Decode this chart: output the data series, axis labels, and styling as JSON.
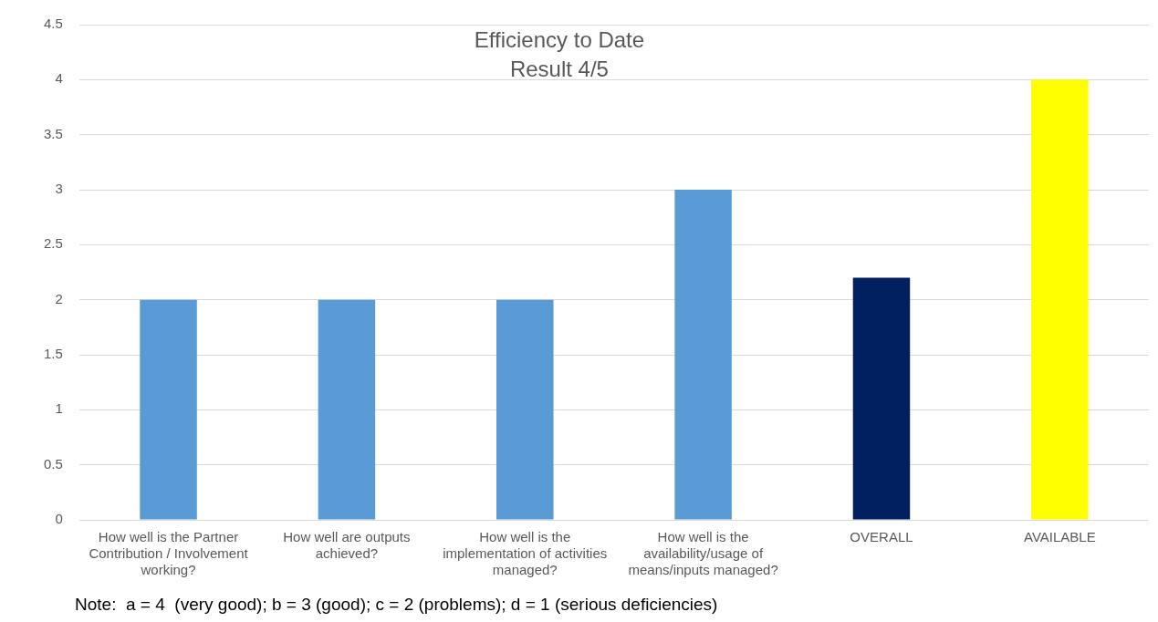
{
  "chart_data": {
    "type": "bar",
    "title": "Efficiency to Date",
    "subtitle": "Result 4/5",
    "categories": [
      "How well is the Partner Contribution / Involvement working?",
      "How well are outputs achieved?",
      "How well is the implementation of activities managed?",
      "How well is the availability/usage of means/inputs managed?",
      "OVERALL",
      "AVAILABLE"
    ],
    "values": [
      2,
      2,
      2,
      3,
      2.2,
      4
    ],
    "colors": [
      "#5b9bd5",
      "#5b9bd5",
      "#5b9bd5",
      "#5b9bd5",
      "#002060",
      "#ffff00"
    ],
    "ylim": [
      0,
      4.5
    ],
    "yticks": [
      0,
      0.5,
      1,
      1.5,
      2,
      2.5,
      3,
      3.5,
      4,
      4.5
    ],
    "grid": "y",
    "legend": false,
    "annotations": [
      "Note:  a = 4  (very good); b = 3 (good); c = 2 (problems); d = 1 (serious deficiencies)"
    ]
  }
}
